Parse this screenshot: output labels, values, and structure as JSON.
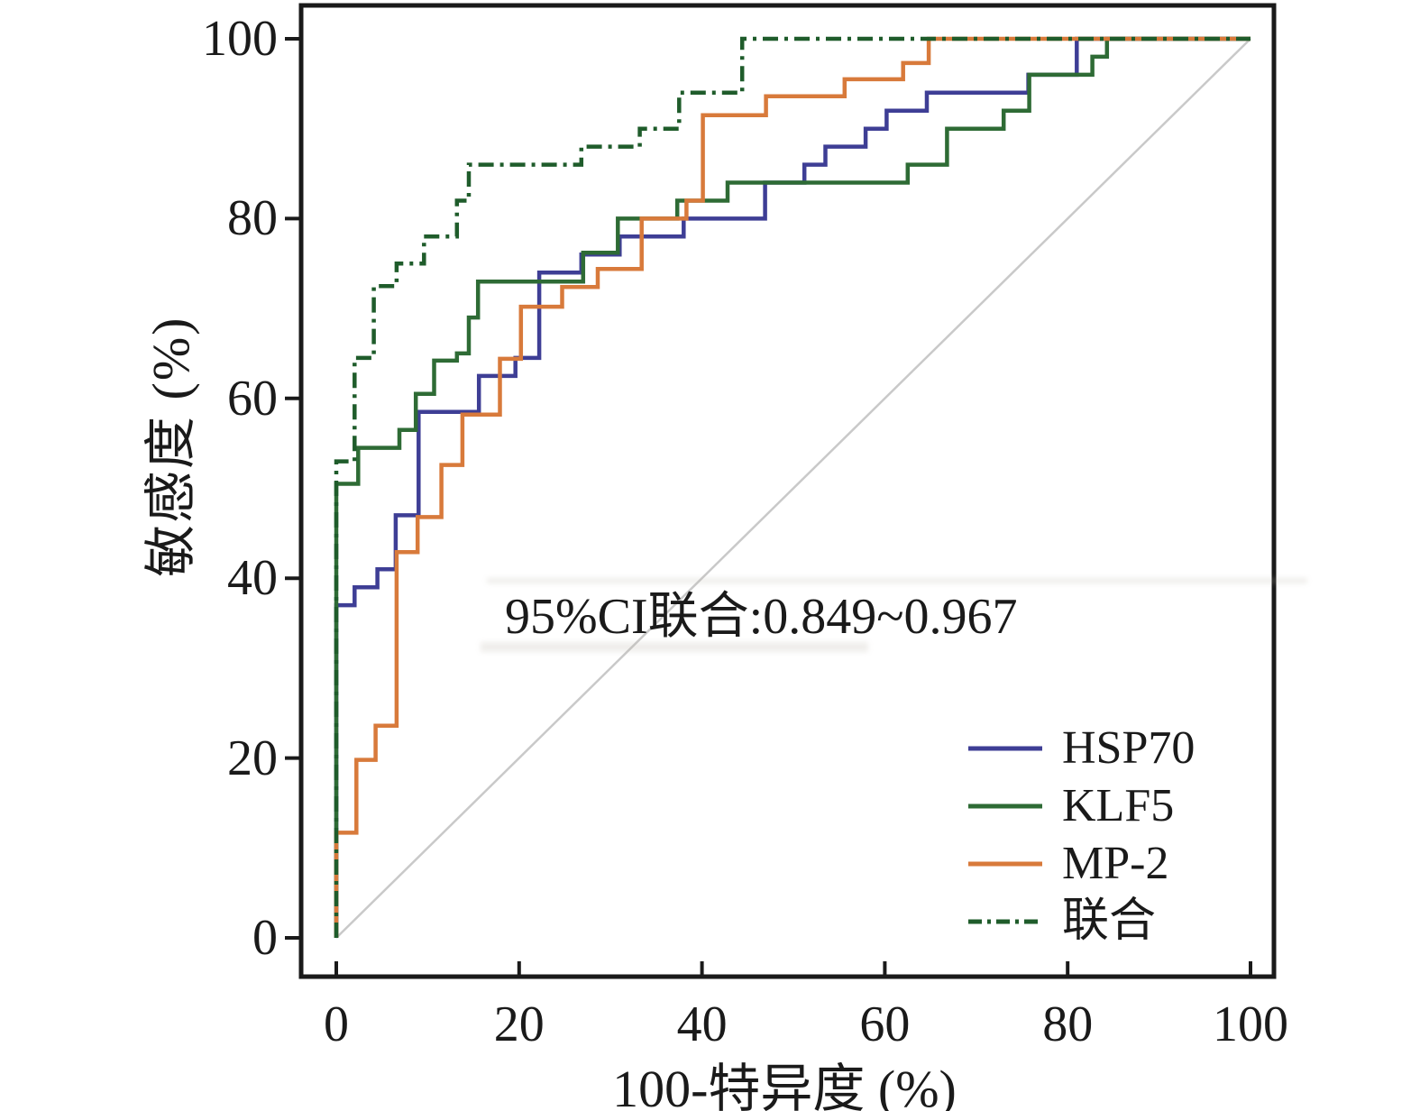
{
  "axes": {
    "x_label": "100-特异度 (%)",
    "y_label": "敏感度 (%)",
    "x_tick_labels": [
      "0",
      "20",
      "40",
      "60",
      "80",
      "100"
    ],
    "y_tick_labels": [
      "0",
      "20",
      "40",
      "60",
      "80",
      "100"
    ],
    "axis_color": "#1a1a1a"
  },
  "annotation": {
    "text": "95%CI联合:0.849~0.967"
  },
  "colors": {
    "hsp70": "#3e3e95",
    "klf5": "#2e6b35",
    "mp2": "#d87a3b",
    "lianhe": "#1f5c2b",
    "reference": "#c9c9c9"
  },
  "chart_data": {
    "type": "line",
    "subtype": "roc-step-curves",
    "title": "",
    "xlabel": "100-特异度 (%)",
    "ylabel": "敏感度 (%)",
    "xlim": [
      0,
      100
    ],
    "ylim": [
      0,
      100
    ],
    "x_ticks": [
      0,
      20,
      40,
      60,
      80,
      100
    ],
    "y_ticks": [
      0,
      20,
      40,
      60,
      80,
      100
    ],
    "grid": false,
    "legend_position": "lower right",
    "annotation": "95%CI联合:0.849~0.967",
    "reference_line": {
      "from": [
        0,
        0
      ],
      "to": [
        100,
        100
      ],
      "color": "#c9c9c9",
      "style": "solid"
    },
    "series": [
      {
        "name": "HSP70",
        "color": "#3e3e95",
        "dash": "solid",
        "points": [
          [
            0,
            0
          ],
          [
            0,
            37
          ],
          [
            2,
            37
          ],
          [
            2,
            39
          ],
          [
            4.5,
            39
          ],
          [
            4.5,
            41
          ],
          [
            6.5,
            41
          ],
          [
            6.5,
            47
          ],
          [
            9,
            47
          ],
          [
            9,
            58.5
          ],
          [
            15.6,
            58.5
          ],
          [
            15.6,
            62.5
          ],
          [
            19.6,
            62.5
          ],
          [
            19.6,
            64.5
          ],
          [
            22.2,
            64.5
          ],
          [
            22.2,
            74
          ],
          [
            26.8,
            74
          ],
          [
            26.8,
            76
          ],
          [
            31,
            76
          ],
          [
            31,
            78
          ],
          [
            38,
            78
          ],
          [
            38,
            80
          ],
          [
            46.9,
            80
          ],
          [
            46.9,
            84
          ],
          [
            51.2,
            84
          ],
          [
            51.2,
            86
          ],
          [
            53.5,
            86
          ],
          [
            53.5,
            88
          ],
          [
            57.9,
            88
          ],
          [
            57.9,
            90
          ],
          [
            60.2,
            90
          ],
          [
            60.2,
            92
          ],
          [
            64.6,
            92
          ],
          [
            64.6,
            94
          ],
          [
            75.7,
            94
          ],
          [
            75.7,
            96
          ],
          [
            81,
            96
          ],
          [
            81,
            100
          ],
          [
            100,
            100
          ]
        ]
      },
      {
        "name": "KLF5",
        "color": "#2e6b35",
        "dash": "solid",
        "points": [
          [
            0,
            0
          ],
          [
            0,
            50.5
          ],
          [
            2.4,
            50.5
          ],
          [
            2.4,
            54.5
          ],
          [
            6.9,
            54.5
          ],
          [
            6.9,
            56.5
          ],
          [
            8.7,
            56.5
          ],
          [
            8.7,
            60.5
          ],
          [
            10.7,
            60.5
          ],
          [
            10.7,
            64.2
          ],
          [
            13.2,
            64.2
          ],
          [
            13.2,
            65
          ],
          [
            14.5,
            65
          ],
          [
            14.5,
            69
          ],
          [
            15.5,
            69
          ],
          [
            15.5,
            73
          ],
          [
            27,
            73
          ],
          [
            27,
            76.2
          ],
          [
            30.8,
            76.2
          ],
          [
            30.8,
            80
          ],
          [
            37.3,
            80
          ],
          [
            37.3,
            82
          ],
          [
            42.8,
            82
          ],
          [
            42.8,
            84
          ],
          [
            62.5,
            84
          ],
          [
            62.5,
            86
          ],
          [
            66.8,
            86
          ],
          [
            66.8,
            90
          ],
          [
            73,
            90
          ],
          [
            73,
            92
          ],
          [
            75.8,
            92
          ],
          [
            75.8,
            96
          ],
          [
            82.7,
            96
          ],
          [
            82.7,
            98
          ],
          [
            84.3,
            98
          ],
          [
            84.3,
            100
          ],
          [
            100,
            100
          ]
        ]
      },
      {
        "name": "MP-2",
        "color": "#d87a3b",
        "dash": "solid",
        "points": [
          [
            0,
            0
          ],
          [
            0,
            11.7
          ],
          [
            2.2,
            11.7
          ],
          [
            2.2,
            19.8
          ],
          [
            4.3,
            19.8
          ],
          [
            4.3,
            23.6
          ],
          [
            6.6,
            23.6
          ],
          [
            6.6,
            42.9
          ],
          [
            8.9,
            42.9
          ],
          [
            8.9,
            46.8
          ],
          [
            11.5,
            46.8
          ],
          [
            11.5,
            52.6
          ],
          [
            13.8,
            52.6
          ],
          [
            13.8,
            58.2
          ],
          [
            17.9,
            58.2
          ],
          [
            17.9,
            64.4
          ],
          [
            20.2,
            64.4
          ],
          [
            20.2,
            70.2
          ],
          [
            24.7,
            70.2
          ],
          [
            24.7,
            72.4
          ],
          [
            28.6,
            72.4
          ],
          [
            28.6,
            74.4
          ],
          [
            33.4,
            74.4
          ],
          [
            33.4,
            80
          ],
          [
            38.3,
            80
          ],
          [
            38.3,
            82
          ],
          [
            40.1,
            82
          ],
          [
            40.1,
            91.5
          ],
          [
            47,
            91.5
          ],
          [
            47,
            93.6
          ],
          [
            55.6,
            93.6
          ],
          [
            55.6,
            95.5
          ],
          [
            62,
            95.5
          ],
          [
            62,
            97.3
          ],
          [
            64.8,
            97.3
          ],
          [
            64.8,
            100
          ],
          [
            100,
            100
          ]
        ]
      },
      {
        "name": "联合",
        "color": "#1f5c2b",
        "dash": "dashdot",
        "points": [
          [
            0,
            0
          ],
          [
            0,
            53
          ],
          [
            2,
            53
          ],
          [
            2,
            64.5
          ],
          [
            4.1,
            64.5
          ],
          [
            4.1,
            72.5
          ],
          [
            6.6,
            72.5
          ],
          [
            6.6,
            75
          ],
          [
            9.6,
            75
          ],
          [
            9.6,
            78
          ],
          [
            13.2,
            78
          ],
          [
            13.2,
            82
          ],
          [
            14.5,
            82
          ],
          [
            14.5,
            86
          ],
          [
            26.8,
            86
          ],
          [
            26.8,
            88
          ],
          [
            33.2,
            88
          ],
          [
            33.2,
            90
          ],
          [
            37.5,
            90
          ],
          [
            37.5,
            94
          ],
          [
            44.4,
            94
          ],
          [
            44.4,
            100
          ],
          [
            100,
            100
          ]
        ]
      }
    ]
  },
  "legend": {
    "items": [
      {
        "label": "HSP70"
      },
      {
        "label": "KLF5"
      },
      {
        "label": "MP-2"
      },
      {
        "label": "联合"
      }
    ]
  }
}
